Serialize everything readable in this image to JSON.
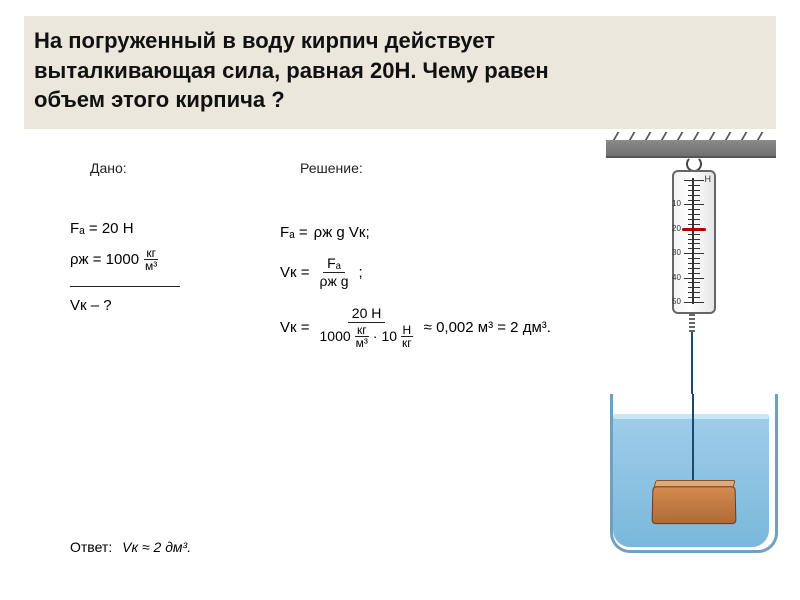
{
  "title": {
    "line1": "На погруженный в воду кирпич действует",
    "line2": "выталкивающая сила, равная 20Н. Чему равен",
    "line3": "объем этого кирпича ?"
  },
  "headers": {
    "given": "Дано:",
    "solution": "Решение:"
  },
  "given": {
    "Fa_label": "Fₐ = 20 Н",
    "rho_lhs": "ρж = 1000",
    "rho_num": "кг",
    "rho_den": "м³",
    "unknown": "Vк – ?"
  },
  "solution": {
    "eq1_lhs": "Fₐ =",
    "eq1_rhs": "ρж g Vк;",
    "eq2_lhs": "Vк =",
    "eq2_num": "Fₐ",
    "eq2_den": "ρж g",
    "eq2_tail": ";",
    "eq3_lhs": "Vк =",
    "eq3_num": "20 Н",
    "eq3_den_a": "1000",
    "eq3_den_unit1_n": "кг",
    "eq3_den_unit1_d": "м³",
    "eq3_den_mid": " · 10",
    "eq3_den_unit2_n": "Н",
    "eq3_den_unit2_d": "кг",
    "eq3_result": "≈ 0,002 м³ = 2 дм³."
  },
  "answer": {
    "label": "Ответ:",
    "value": "Vк ≈ 2 дм³."
  },
  "dynamometer": {
    "unit_label": "Н",
    "pointer_value_N": 20,
    "scale_max_N": 50,
    "major_tick_step": 10,
    "labels": [
      "10",
      "20",
      "30",
      "40",
      "50"
    ]
  },
  "visual": {
    "title_bg": "#ebe7dc",
    "text_color": "#111111",
    "water_top": "#9ecde9",
    "water_bottom": "#7ab8db",
    "beaker_border": "#6fa0bf",
    "brick_top_color": "#e0a978",
    "brick_side_color": "#d28b4f",
    "bar_color": "#707070",
    "pointer_color": "#b00000"
  }
}
